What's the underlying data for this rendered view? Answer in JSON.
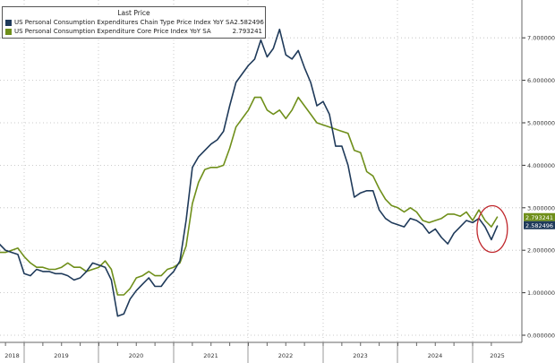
{
  "chart_data": {
    "type": "line",
    "title": "",
    "x_start": "2018-09",
    "x_frequency": "monthly",
    "x_tick_labels": [
      "2018",
      "2019",
      "2020",
      "2021",
      "2022",
      "2023",
      "2024",
      "2025"
    ],
    "y_tick_labels": [
      "0.000000",
      "1.000000",
      "2.000000",
      "3.000000",
      "4.000000",
      "5.000000",
      "6.000000",
      "7.000000"
    ],
    "ylim": [
      0,
      7.4
    ],
    "y_axis_side": "right",
    "grid": true,
    "legend": {
      "placement": "top-left",
      "header": "Last Price",
      "entries": [
        {
          "name": "US Personal Consumption Expenditures Chain Type Price Index YoY SA",
          "value": "2.582496",
          "color": "#1f3a5a"
        },
        {
          "name": "US Personal Consumption Expenditure Core Price Index YoY SA",
          "value": "2.793241",
          "color": "#6f8f1a"
        }
      ]
    },
    "series": [
      {
        "name": "US Personal Consumption Expenditures Chain Type Price Index YoY SA",
        "color": "#1f3a5a",
        "last_label": "2.582496",
        "values": [
          2.15,
          2.0,
          1.95,
          1.9,
          1.45,
          1.4,
          1.55,
          1.5,
          1.5,
          1.45,
          1.45,
          1.4,
          1.3,
          1.35,
          1.5,
          1.7,
          1.65,
          1.6,
          1.3,
          0.45,
          0.5,
          0.85,
          1.05,
          1.2,
          1.35,
          1.15,
          1.15,
          1.35,
          1.5,
          1.75,
          2.7,
          3.95,
          4.2,
          4.35,
          4.5,
          4.6,
          4.8,
          5.4,
          5.95,
          6.15,
          6.35,
          6.5,
          6.95,
          6.55,
          6.75,
          7.2,
          6.6,
          6.5,
          6.7,
          6.3,
          5.95,
          5.4,
          5.5,
          5.2,
          4.45,
          4.45,
          4.0,
          3.25,
          3.35,
          3.4,
          3.4,
          2.95,
          2.75,
          2.65,
          2.6,
          2.55,
          2.75,
          2.7,
          2.6,
          2.4,
          2.5,
          2.3,
          2.15,
          2.4,
          2.55,
          2.7,
          2.65,
          2.75,
          2.55,
          2.25,
          2.582496
        ]
      },
      {
        "name": "US Personal Consumption Expenditure Core Price Index YoY SA",
        "color": "#6f8f1a",
        "last_label": "2.793241",
        "values": [
          1.95,
          1.95,
          2.0,
          2.05,
          1.85,
          1.7,
          1.6,
          1.6,
          1.55,
          1.55,
          1.6,
          1.7,
          1.6,
          1.6,
          1.5,
          1.55,
          1.6,
          1.75,
          1.55,
          0.95,
          0.95,
          1.1,
          1.35,
          1.4,
          1.5,
          1.4,
          1.4,
          1.55,
          1.6,
          1.7,
          2.1,
          3.1,
          3.6,
          3.9,
          3.95,
          3.95,
          4.0,
          4.4,
          4.9,
          5.1,
          5.3,
          5.6,
          5.6,
          5.3,
          5.2,
          5.3,
          5.1,
          5.3,
          5.6,
          5.4,
          5.2,
          5.0,
          4.95,
          4.9,
          4.85,
          4.8,
          4.75,
          4.35,
          4.3,
          3.85,
          3.75,
          3.45,
          3.2,
          3.05,
          3.0,
          2.9,
          3.0,
          2.9,
          2.7,
          2.65,
          2.7,
          2.75,
          2.85,
          2.85,
          2.8,
          2.9,
          2.7,
          2.95,
          2.7,
          2.55,
          2.793241
        ]
      }
    ],
    "annotation": {
      "type": "ellipse",
      "color": "#c0282d",
      "around": "latest values 2025"
    }
  }
}
